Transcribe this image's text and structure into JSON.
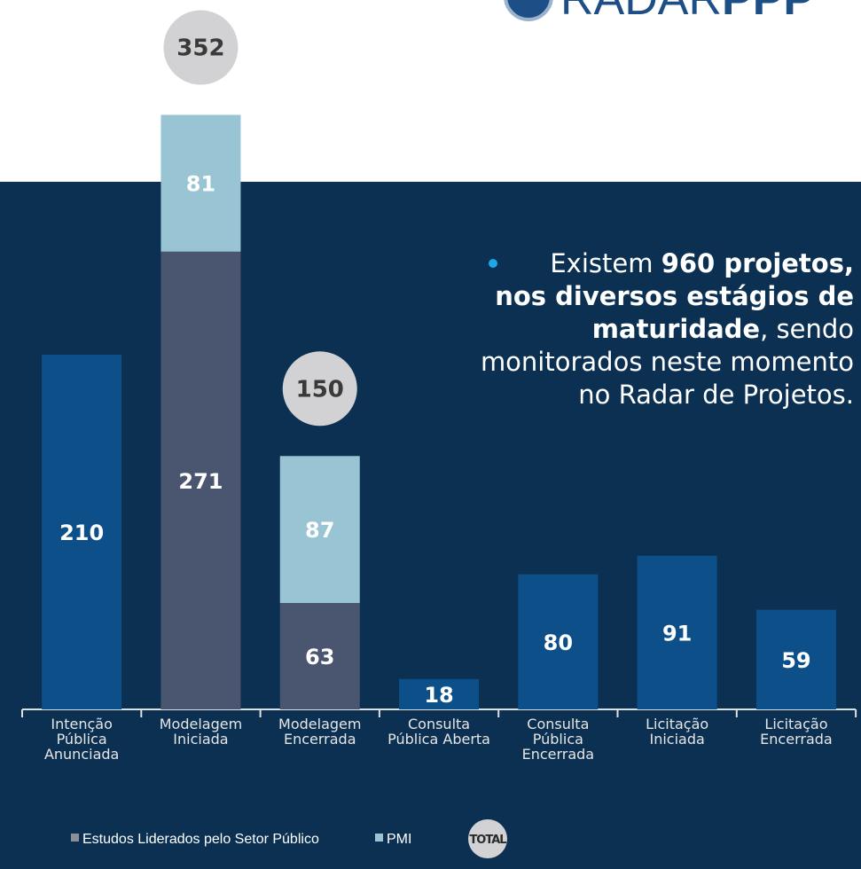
{
  "logo": {
    "light": "RADAR",
    "bold": "PPP"
  },
  "chart_data": {
    "type": "stacked-bar",
    "categories": [
      "Intenção\nPública\nAnunciada",
      "Modelagem\nIniciada",
      "Modelagem\nEncerrada",
      "Consulta\nPública Aberta",
      "Consulta\nPública\nEncerrada",
      "Licitação\nIniciada",
      "Licitação\nEncerrada"
    ],
    "series": [
      {
        "name": "Estudos Liderados pelo Setor Público",
        "color": "#4a5670",
        "values": [
          null,
          271,
          63,
          null,
          null,
          null,
          null
        ]
      },
      {
        "name": "PMI",
        "color": "#98c4d4",
        "values": [
          null,
          81,
          87,
          null,
          null,
          null,
          null
        ]
      }
    ],
    "totals": {
      "name": "TOTAL",
      "color": "#0d5089",
      "values": [
        210,
        352,
        150,
        18,
        80,
        91,
        59
      ]
    },
    "annotation": [
      [
        {
          "text": "Existem "
        },
        {
          "text": "960 projetos,",
          "bold": true
        }
      ],
      [
        {
          "text": "nos diversos estágios de",
          "bold": true
        }
      ],
      [
        {
          "text": "maturidade",
          "bold": true
        },
        {
          "text": ", sendo"
        }
      ],
      [
        {
          "text": "monitorados neste momento"
        }
      ],
      [
        {
          "text": "no Radar de Projetos."
        }
      ]
    ]
  }
}
